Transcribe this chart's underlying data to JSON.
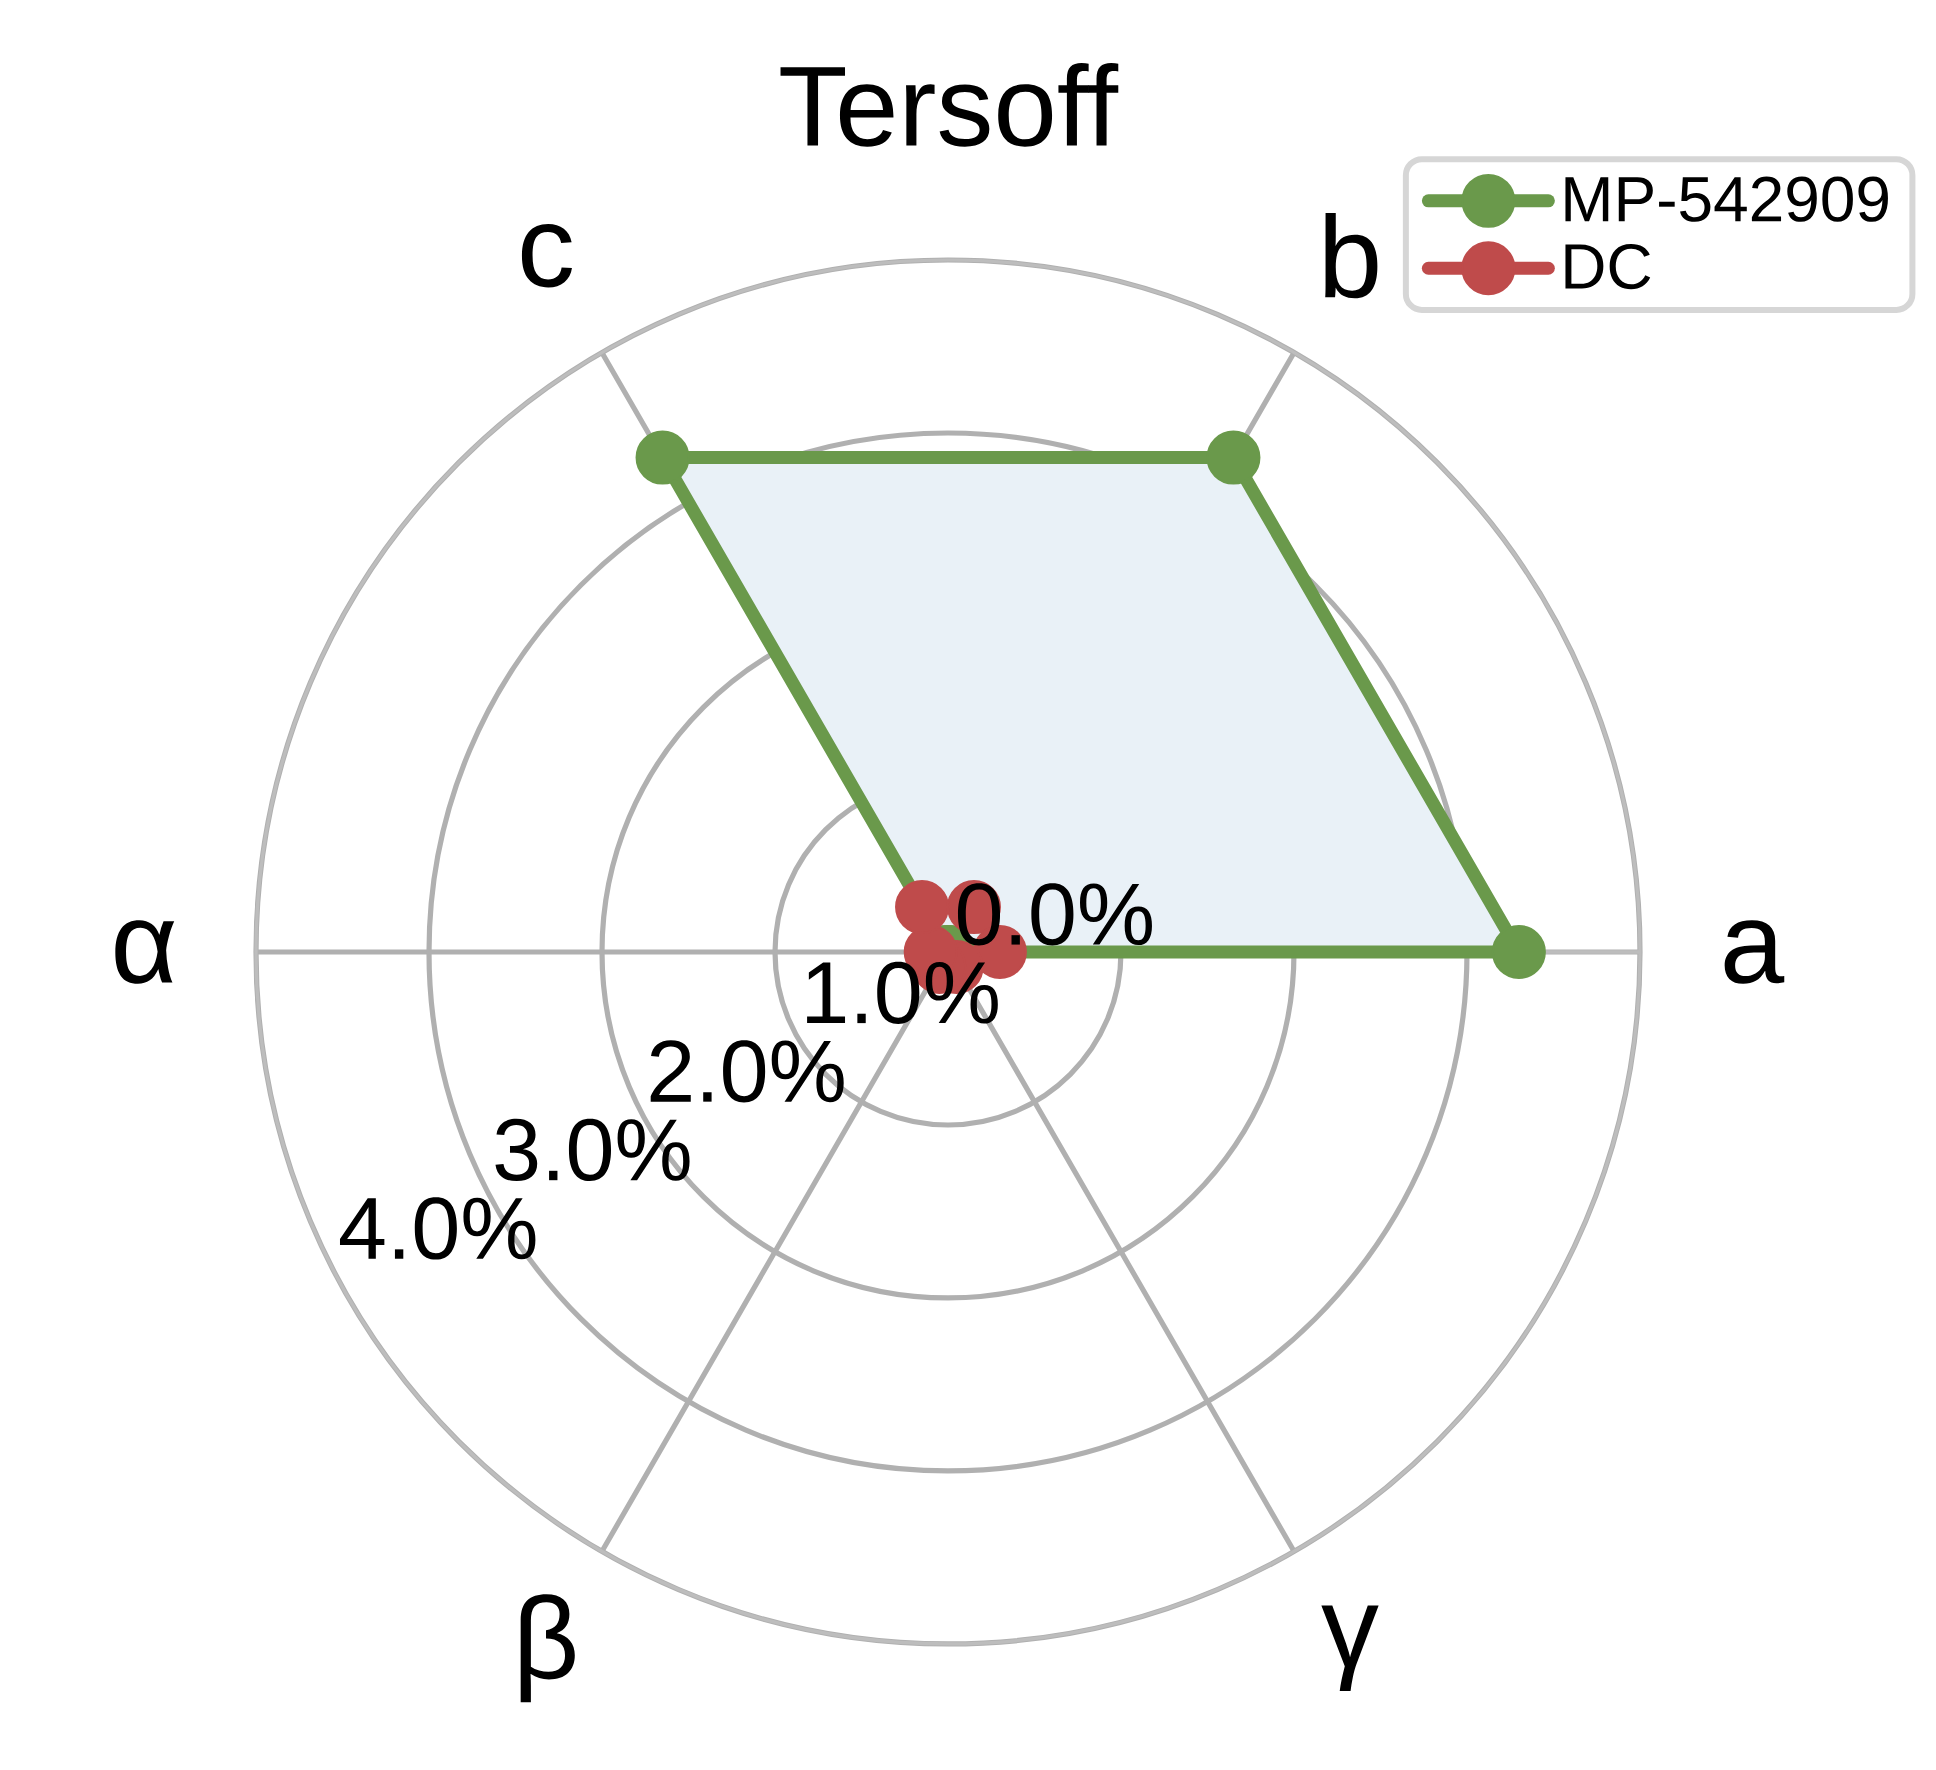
{
  "chart_data": {
    "type": "radar",
    "title": "Tersoff",
    "categories": [
      "b",
      "a",
      "γ",
      "β",
      "α",
      "c"
    ],
    "series": [
      {
        "name": "MP-542909",
        "color": "#6a994b",
        "values": [
          3.3,
          3.3,
          0.0,
          0.0,
          0.0,
          3.3
        ]
      },
      {
        "name": "DC",
        "color": "#bf4b4b",
        "values": [
          0.3,
          0.3,
          0.1,
          0.1,
          0.1,
          0.3
        ]
      }
    ],
    "ylim": [
      0,
      4
    ],
    "yticks": [
      {
        "value": 0,
        "label": "0.0%"
      },
      {
        "value": 1,
        "label": "1.0%"
      },
      {
        "value": 2,
        "label": "2.0%"
      },
      {
        "value": 3,
        "label": "3.0%"
      },
      {
        "value": 4,
        "label": "4.0%"
      }
    ],
    "grid": true,
    "legend": "top right",
    "marker": "circle",
    "line_style": "solid"
  }
}
